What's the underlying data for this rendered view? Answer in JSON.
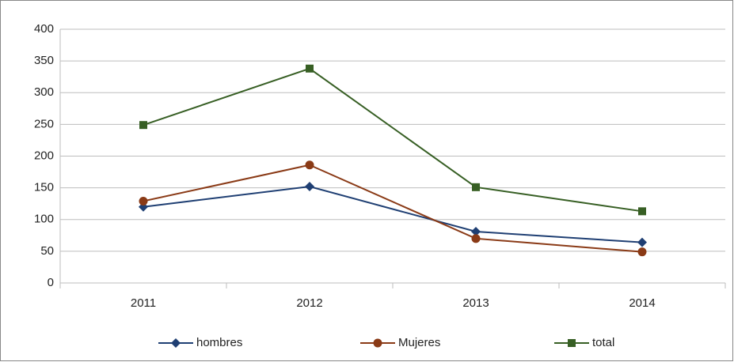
{
  "chart_data": {
    "type": "line",
    "categories": [
      "2011",
      "2012",
      "2013",
      "2014"
    ],
    "series": [
      {
        "name": "hombres",
        "color": "#1f3f73",
        "marker": "diamond",
        "values": [
          120,
          152,
          81,
          64
        ]
      },
      {
        "name": "Mujeres",
        "color": "#8a3a16",
        "marker": "circle",
        "values": [
          129,
          186,
          70,
          49
        ]
      },
      {
        "name": "total",
        "color": "#375f24",
        "marker": "square",
        "values": [
          249,
          338,
          151,
          113
        ]
      }
    ],
    "ylim": [
      0,
      400
    ],
    "yticks": [
      0,
      50,
      100,
      150,
      200,
      250,
      300,
      350,
      400
    ],
    "grid": true,
    "legend": "bottom"
  }
}
